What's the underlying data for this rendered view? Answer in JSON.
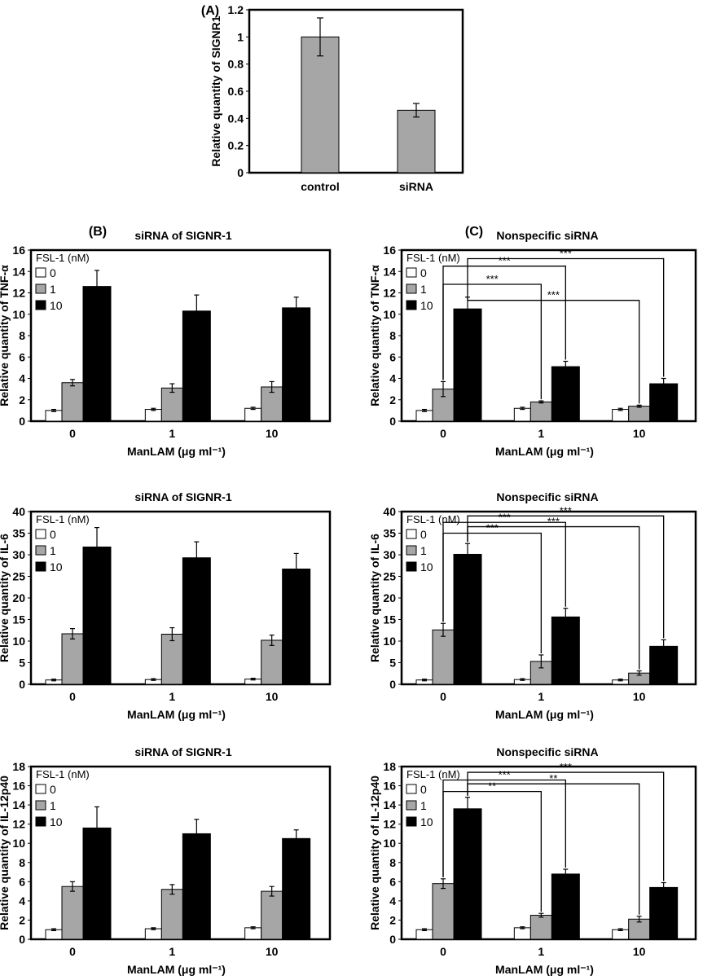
{
  "colors": {
    "control": "#ffffff",
    "mid": "#a6a6a6",
    "high": "#000000",
    "panelA": "#a6a6a6"
  },
  "chart_data": [
    {
      "id": "A",
      "type": "bar",
      "panel_label": "(A)",
      "title": "",
      "xlabel": "",
      "ylabel": "Relative quantity of SIGNR1",
      "ylim": [
        0,
        1.2
      ],
      "yticks": [
        "0",
        "0.2",
        "0.4",
        "0.6",
        "0.8",
        "1",
        "1.2"
      ],
      "categories": [
        "control",
        "siRNA"
      ],
      "values": [
        1.0,
        0.46
      ],
      "errors": [
        0.14,
        0.05
      ],
      "grid": false
    },
    {
      "id": "B_TNF",
      "type": "bar",
      "panel_label": "(B)",
      "title": "siRNA of SIGNR-1",
      "xlabel": "ManLAM (μg ml⁻¹)",
      "ylabel": "Relative quantity of TNF-α",
      "ylim": [
        0,
        16
      ],
      "yticks": [
        "0",
        "2",
        "4",
        "6",
        "8",
        "10",
        "12",
        "14",
        "16"
      ],
      "categories": [
        "0",
        "1",
        "10"
      ],
      "legend_title": "FSL-1 (nM)",
      "legend_position": "top-left",
      "series": [
        {
          "name": "0",
          "values": [
            1.0,
            1.1,
            1.2
          ],
          "errors": [
            0.1,
            0.1,
            0.1
          ]
        },
        {
          "name": "1",
          "values": [
            3.6,
            3.1,
            3.2
          ],
          "errors": [
            0.3,
            0.4,
            0.5
          ]
        },
        {
          "name": "10",
          "values": [
            12.6,
            10.3,
            10.6
          ],
          "errors": [
            1.5,
            1.5,
            1.0
          ]
        }
      ],
      "annotations": []
    },
    {
      "id": "C_TNF",
      "type": "bar",
      "panel_label": "(C)",
      "title": "Nonspecific siRNA",
      "xlabel": "ManLAM (μg ml⁻¹)",
      "ylabel": "Relative quantity of TNF-α",
      "ylim": [
        0,
        16
      ],
      "yticks": [
        "0",
        "2",
        "4",
        "6",
        "8",
        "10",
        "12",
        "14",
        "16"
      ],
      "categories": [
        "0",
        "1",
        "10"
      ],
      "legend_title": "FSL-1 (nM)",
      "legend_position": "top-left",
      "series": [
        {
          "name": "0",
          "values": [
            1.0,
            1.2,
            1.1
          ],
          "errors": [
            0.1,
            0.1,
            0.1
          ]
        },
        {
          "name": "1",
          "values": [
            3.0,
            1.8,
            1.4
          ],
          "errors": [
            0.7,
            0.1,
            0.1
          ]
        },
        {
          "name": "10",
          "values": [
            10.5,
            5.1,
            3.5
          ],
          "errors": [
            1.1,
            0.5,
            0.5
          ]
        }
      ],
      "annotations": [
        {
          "text": "***",
          "from": [
            0,
            1
          ],
          "to": [
            1,
            1
          ],
          "level": 12.8
        },
        {
          "text": "***",
          "from": [
            0,
            1
          ],
          "to": [
            1,
            2
          ],
          "level": 14.5
        },
        {
          "text": "***",
          "from": [
            0,
            2
          ],
          "to": [
            2,
            1
          ],
          "level": 11.3
        },
        {
          "text": "***",
          "from": [
            0,
            2
          ],
          "to": [
            2,
            2
          ],
          "level": 15.2
        }
      ]
    },
    {
      "id": "B_IL6",
      "type": "bar",
      "panel_label": "",
      "title": "siRNA of SIGNR-1",
      "xlabel": "ManLAM (μg ml⁻¹)",
      "ylabel": "Relative quantity of IL-6",
      "ylim": [
        0,
        40
      ],
      "yticks": [
        "0",
        "5",
        "10",
        "15",
        "20",
        "25",
        "30",
        "35",
        "40"
      ],
      "categories": [
        "0",
        "1",
        "10"
      ],
      "legend_title": "FSL-1 (nM)",
      "legend_position": "top-left",
      "series": [
        {
          "name": "0",
          "values": [
            1.0,
            1.1,
            1.2
          ],
          "errors": [
            0.2,
            0.2,
            0.2
          ]
        },
        {
          "name": "1",
          "values": [
            11.7,
            11.6,
            10.2
          ],
          "errors": [
            1.2,
            1.5,
            1.2
          ]
        },
        {
          "name": "10",
          "values": [
            31.8,
            29.3,
            26.7
          ],
          "errors": [
            4.5,
            3.7,
            3.6
          ]
        }
      ],
      "annotations": []
    },
    {
      "id": "C_IL6",
      "type": "bar",
      "panel_label": "",
      "title": "Nonspecific siRNA",
      "xlabel": "ManLAM (μg ml⁻¹)",
      "ylabel": "Relative quantity of IL-6",
      "ylim": [
        0,
        40
      ],
      "yticks": [
        "0",
        "5",
        "10",
        "15",
        "20",
        "25",
        "30",
        "35",
        "40"
      ],
      "categories": [
        "0",
        "1",
        "10"
      ],
      "legend_title": "FSL-1 (nM)",
      "legend_position": "top-left",
      "series": [
        {
          "name": "0",
          "values": [
            1.0,
            1.1,
            1.0
          ],
          "errors": [
            0.2,
            0.2,
            0.2
          ]
        },
        {
          "name": "1",
          "values": [
            12.6,
            5.3,
            2.6
          ],
          "errors": [
            1.5,
            1.5,
            0.5
          ]
        },
        {
          "name": "10",
          "values": [
            30.1,
            15.6,
            8.8
          ],
          "errors": [
            2.5,
            2.0,
            1.5
          ]
        }
      ],
      "annotations": [
        {
          "text": "***",
          "from": [
            0,
            1
          ],
          "to": [
            1,
            1
          ],
          "level": 35.0
        },
        {
          "text": "***",
          "from": [
            0,
            1
          ],
          "to": [
            1,
            2
          ],
          "level": 37.5
        },
        {
          "text": "***",
          "from": [
            0,
            2
          ],
          "to": [
            2,
            1
          ],
          "level": 36.5
        },
        {
          "text": "***",
          "from": [
            0,
            2
          ],
          "to": [
            2,
            2
          ],
          "level": 39.0
        }
      ]
    },
    {
      "id": "B_IL12",
      "type": "bar",
      "panel_label": "",
      "title": "siRNA of SIGNR-1",
      "xlabel": "ManLAM (μg ml⁻¹)",
      "ylabel": "Relative quantity of IL-12p40",
      "ylim": [
        0,
        18
      ],
      "yticks": [
        "0",
        "2",
        "4",
        "6",
        "8",
        "10",
        "12",
        "14",
        "16",
        "18"
      ],
      "categories": [
        "0",
        "1",
        "10"
      ],
      "legend_title": "FSL-1 (nM)",
      "legend_position": "top-left",
      "series": [
        {
          "name": "0",
          "values": [
            1.0,
            1.1,
            1.2
          ],
          "errors": [
            0.1,
            0.1,
            0.1
          ]
        },
        {
          "name": "1",
          "values": [
            5.5,
            5.2,
            5.0
          ],
          "errors": [
            0.5,
            0.5,
            0.5
          ]
        },
        {
          "name": "10",
          "values": [
            11.6,
            11.0,
            10.5
          ],
          "errors": [
            2.2,
            1.5,
            0.9
          ]
        }
      ],
      "annotations": []
    },
    {
      "id": "C_IL12",
      "type": "bar",
      "panel_label": "",
      "title": "Nonspecific siRNA",
      "xlabel": "ManLAM (μg ml⁻¹)",
      "ylabel": "Relative quantity of IL-12p40",
      "ylim": [
        0,
        18
      ],
      "yticks": [
        "0",
        "2",
        "4",
        "6",
        "8",
        "10",
        "12",
        "14",
        "16",
        "18"
      ],
      "categories": [
        "0",
        "1",
        "10"
      ],
      "legend_title": "FSL-1 (nM)",
      "legend_position": "top-left",
      "series": [
        {
          "name": "0",
          "values": [
            1.0,
            1.2,
            1.0
          ],
          "errors": [
            0.1,
            0.1,
            0.1
          ]
        },
        {
          "name": "1",
          "values": [
            5.8,
            2.5,
            2.1
          ],
          "errors": [
            0.5,
            0.2,
            0.3
          ]
        },
        {
          "name": "10",
          "values": [
            13.6,
            6.8,
            5.4
          ],
          "errors": [
            1.2,
            0.5,
            0.5
          ]
        }
      ],
      "annotations": [
        {
          "text": "**",
          "from": [
            0,
            1
          ],
          "to": [
            1,
            1
          ],
          "level": 15.4
        },
        {
          "text": "***",
          "from": [
            0,
            1
          ],
          "to": [
            1,
            2
          ],
          "level": 16.6
        },
        {
          "text": "**",
          "from": [
            0,
            2
          ],
          "to": [
            2,
            1
          ],
          "level": 16.2
        },
        {
          "text": "***",
          "from": [
            0,
            2
          ],
          "to": [
            2,
            2
          ],
          "level": 17.4
        }
      ]
    }
  ]
}
